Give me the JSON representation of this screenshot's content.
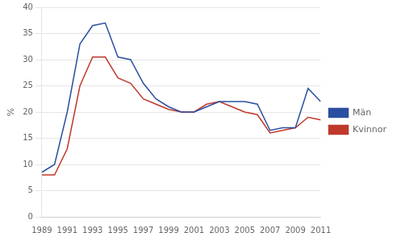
{
  "chart_data": {
    "type": "line",
    "x": [
      1989,
      1990,
      1991,
      1992,
      1993,
      1994,
      1995,
      1996,
      1997,
      1998,
      1999,
      2000,
      2001,
      2002,
      2003,
      2004,
      2005,
      2006,
      2007,
      2008,
      2009,
      2010,
      2011
    ],
    "series": [
      {
        "name": "Män",
        "color": "#2B4FA0",
        "values": [
          8.5,
          10.0,
          20.0,
          33.0,
          36.5,
          37.0,
          30.5,
          30.0,
          25.5,
          22.5,
          21.0,
          20.0,
          20.0,
          21.0,
          22.0,
          22.0,
          22.0,
          21.5,
          16.5,
          17.0,
          17.0,
          24.5,
          22.0
        ]
      },
      {
        "name": "Kvinnor",
        "color": "#C0392B",
        "values": [
          8.0,
          8.0,
          13.0,
          25.0,
          30.5,
          30.5,
          26.5,
          25.5,
          22.5,
          21.5,
          20.5,
          20.0,
          20.0,
          21.5,
          22.0,
          21.0,
          20.0,
          19.5,
          16.0,
          16.5,
          17.0,
          19.0,
          18.5
        ]
      }
    ],
    "ylabel": "%",
    "xlim": [
      1989,
      2011
    ],
    "xticks": [
      1989,
      1991,
      1993,
      1995,
      1997,
      1999,
      2001,
      2003,
      2005,
      2007,
      2009,
      2011
    ],
    "ylim": [
      0,
      40
    ],
    "yticks": [
      0,
      5,
      10,
      15,
      20,
      25,
      30,
      35,
      40
    ],
    "grid": "y",
    "legend": "right"
  }
}
